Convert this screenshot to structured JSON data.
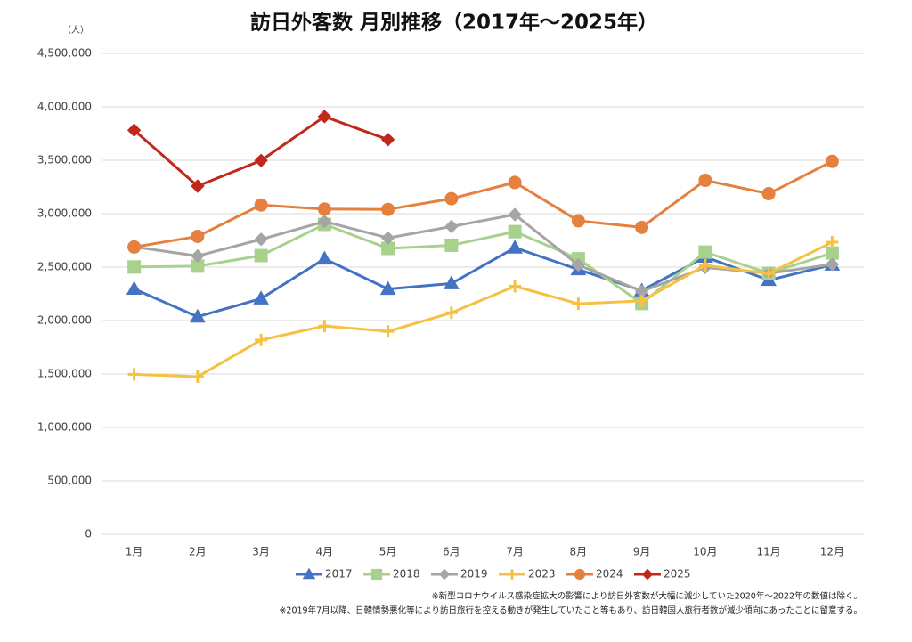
{
  "chart_data": {
    "type": "line",
    "title": "訪日外客数 月別推移（2017年～2025年）",
    "y_unit_label": "（人）",
    "categories": [
      "1月",
      "2月",
      "3月",
      "4月",
      "5月",
      "6月",
      "7月",
      "8月",
      "9月",
      "10月",
      "11月",
      "12月"
    ],
    "series": [
      {
        "name": "2017",
        "color": "#4472c4",
        "marker": "triangle",
        "values": [
          2295700,
          2035800,
          2205700,
          2578000,
          2294600,
          2346500,
          2681600,
          2477700,
          2280300,
          2595500,
          2377900,
          2521600
        ]
      },
      {
        "name": "2018",
        "color": "#a9d18e",
        "marker": "square",
        "values": [
          2501400,
          2509300,
          2607900,
          2900700,
          2675000,
          2704600,
          2832000,
          2578000,
          2159600,
          2640600,
          2442000,
          2632000
        ]
      },
      {
        "name": "2019",
        "color": "#a5a5a5",
        "marker": "diamond",
        "values": [
          2689300,
          2604300,
          2760100,
          2926700,
          2773100,
          2880000,
          2991200,
          2520100,
          2272900,
          2496600,
          2441300,
          2526400
        ]
      },
      {
        "name": "2023",
        "color": "#f6c142",
        "marker": "plus",
        "values": [
          1497300,
          1475500,
          1817500,
          1949200,
          1898900,
          2073300,
          2320600,
          2156900,
          2184300,
          2516500,
          2440000,
          2733000
        ]
      },
      {
        "name": "2024",
        "color": "#e5803f",
        "marker": "circle",
        "values": [
          2688100,
          2788000,
          3081600,
          3042900,
          3040100,
          3140600,
          3292600,
          2933000,
          2872200,
          3312300,
          3187000,
          3489800
        ]
      },
      {
        "name": "2025",
        "color": "#c0281c",
        "marker": "diamond",
        "values": [
          3781600,
          3258100,
          3497600,
          3908900,
          3693300,
          null,
          null,
          null,
          null,
          null,
          null,
          null
        ]
      }
    ],
    "ylim": [
      0,
      4500000
    ],
    "yticks": [
      0,
      {
        "value": 500000,
        "label": "500,000"
      },
      {
        "value": 1000000,
        "label": "1,000,000"
      },
      {
        "value": 1500000,
        "label": "1,500,000"
      },
      {
        "value": 2000000,
        "label": "2,000,000"
      },
      {
        "value": 2500000,
        "label": "2,500,000"
      },
      {
        "value": 3000000,
        "label": "3,000,000"
      },
      {
        "value": 3500000,
        "label": "3,500,000"
      },
      {
        "value": 4000000,
        "label": "4,000,000"
      },
      {
        "value": 4500000,
        "label": "4,500,000"
      }
    ],
    "grid": true,
    "legend": "bottom",
    "notes": [
      "※新型コロナウイルス感染症拡大の影響により訪日外客数が大幅に減少していた2020年～2022年の数値は除く。",
      "※2019年7月以降、日韓情勢悪化等により訪日旅行を控える動きが発生していたこと等もあり、訪日韓国人旅行者数が減少傾向にあったことに留意する。"
    ]
  }
}
